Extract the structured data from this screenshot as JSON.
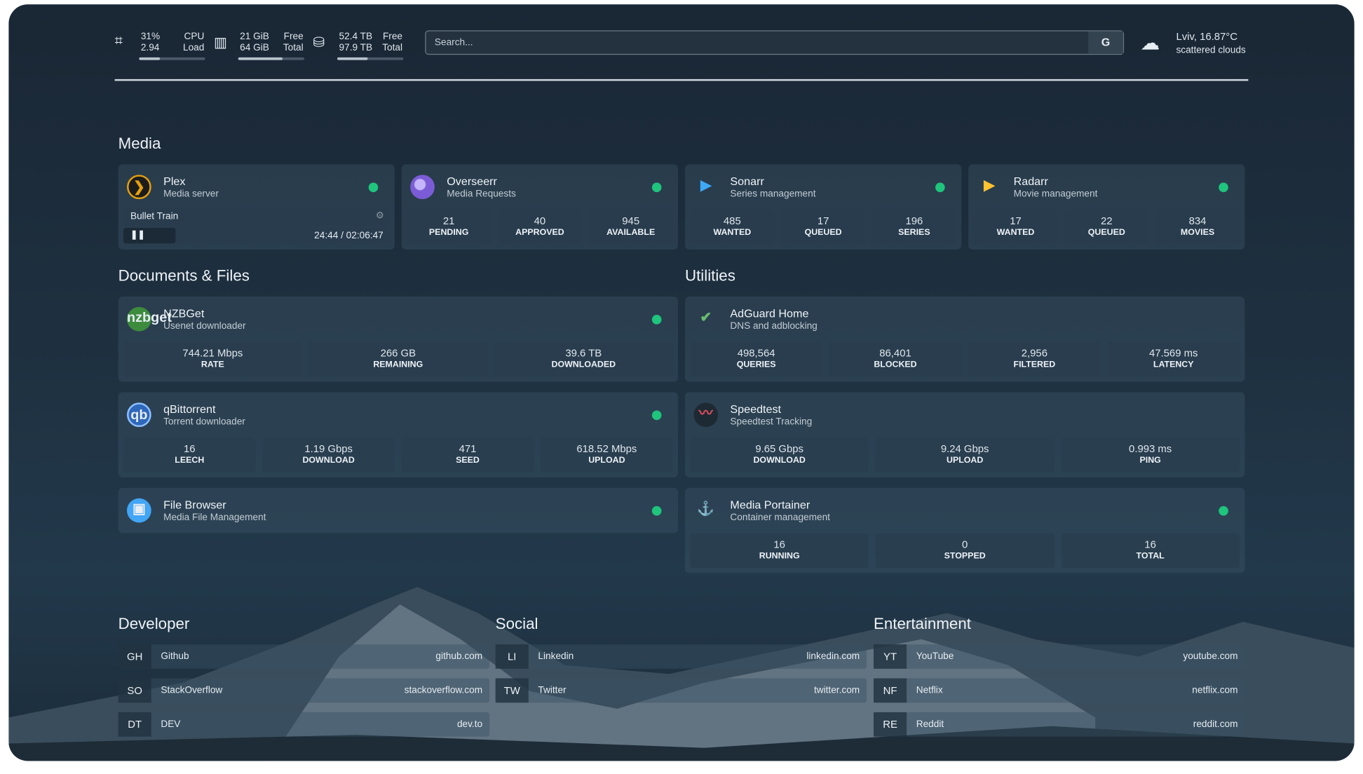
{
  "topbar": {
    "cpu": {
      "icon": "cpu-icon",
      "v1": "31%",
      "v2": "2.94",
      "l1": "CPU",
      "l2": "Load",
      "percent": 31
    },
    "ram": {
      "icon": "memory-icon",
      "v1": "21 GiB",
      "v2": "64 GiB",
      "l1": "Free",
      "l2": "Total",
      "percent": 67
    },
    "disk": {
      "icon": "drive-icon",
      "v1": "52.4 TB",
      "v2": "97.9 TB",
      "l1": "Free",
      "l2": "Total",
      "percent": 46
    },
    "search_placeholder": "Search...",
    "search_button": "G",
    "weather": {
      "icon": "cloud-icon",
      "location": "Lviv, 16.87°C",
      "desc": "scattered clouds"
    }
  },
  "sections": {
    "media": "Media",
    "docs": "Documents & Files",
    "utilities": "Utilities",
    "developer": "Developer",
    "social": "Social",
    "entertainment": "Entertainment"
  },
  "media": [
    {
      "title": "Plex",
      "sub": "Media server",
      "now_playing": "Bullet Train",
      "time": "24:44 / 02:06:47",
      "progress": 19.5,
      "status": "online"
    },
    {
      "title": "Overseerr",
      "sub": "Media Requests",
      "status": "online",
      "stats": [
        {
          "v": "21",
          "l": "PENDING"
        },
        {
          "v": "40",
          "l": "APPROVED"
        },
        {
          "v": "945",
          "l": "AVAILABLE"
        }
      ]
    },
    {
      "title": "Sonarr",
      "sub": "Series management",
      "status": "online",
      "stats": [
        {
          "v": "485",
          "l": "WANTED"
        },
        {
          "v": "17",
          "l": "QUEUED"
        },
        {
          "v": "196",
          "l": "SERIES"
        }
      ]
    },
    {
      "title": "Radarr",
      "sub": "Movie management",
      "status": "online",
      "stats": [
        {
          "v": "17",
          "l": "WANTED"
        },
        {
          "v": "22",
          "l": "QUEUED"
        },
        {
          "v": "834",
          "l": "MOVIES"
        }
      ]
    }
  ],
  "docs": [
    {
      "title": "NZBGet",
      "sub": "Usenet downloader",
      "icon_text": "nzbget",
      "stats": [
        {
          "v": "744.21 Mbps",
          "l": "RATE"
        },
        {
          "v": "266 GB",
          "l": "REMAINING"
        },
        {
          "v": "39.6 TB",
          "l": "DOWNLOADED"
        }
      ]
    },
    {
      "title": "qBittorrent",
      "sub": "Torrent downloader",
      "icon_text": "qb",
      "stats": [
        {
          "v": "16",
          "l": "LEECH"
        },
        {
          "v": "1.19 Gbps",
          "l": "DOWNLOAD"
        },
        {
          "v": "471",
          "l": "SEED"
        },
        {
          "v": "618.52 Mbps",
          "l": "UPLOAD"
        }
      ]
    },
    {
      "title": "File Browser",
      "sub": "Media File Management"
    }
  ],
  "utilities": [
    {
      "title": "AdGuard Home",
      "sub": "DNS and adblocking",
      "stats": [
        {
          "v": "498,564",
          "l": "QUERIES"
        },
        {
          "v": "86,401",
          "l": "BLOCKED"
        },
        {
          "v": "2,956",
          "l": "FILTERED"
        },
        {
          "v": "47.569 ms",
          "l": "LATENCY"
        }
      ]
    },
    {
      "title": "Speedtest",
      "sub": "Speedtest Tracking",
      "stats": [
        {
          "v": "9.65 Gbps",
          "l": "DOWNLOAD"
        },
        {
          "v": "9.24 Gbps",
          "l": "UPLOAD"
        },
        {
          "v": "0.993 ms",
          "l": "PING"
        }
      ]
    },
    {
      "title": "Media Portainer",
      "sub": "Container management",
      "stats": [
        {
          "v": "16",
          "l": "RUNNING"
        },
        {
          "v": "0",
          "l": "STOPPED"
        },
        {
          "v": "16",
          "l": "TOTAL"
        }
      ]
    }
  ],
  "bookmarks": {
    "developer": [
      {
        "ab": "GH",
        "name": "Github",
        "url": "github.com"
      },
      {
        "ab": "SO",
        "name": "StackOverflow",
        "url": "stackoverflow.com"
      },
      {
        "ab": "DT",
        "name": "DEV",
        "url": "dev.to"
      }
    ],
    "social": [
      {
        "ab": "LI",
        "name": "Linkedin",
        "url": "linkedin.com"
      },
      {
        "ab": "TW",
        "name": "Twitter",
        "url": "twitter.com"
      }
    ],
    "entertainment": [
      {
        "ab": "YT",
        "name": "YouTube",
        "url": "youtube.com"
      },
      {
        "ab": "NF",
        "name": "Netflix",
        "url": "netflix.com"
      },
      {
        "ab": "RE",
        "name": "Reddit",
        "url": "reddit.com"
      }
    ]
  },
  "colors": {
    "status_online": "#1fc47d",
    "plex": "#e5a00d",
    "overseerr": "#7b5cd6",
    "sonarr": "#3fa9f5",
    "radarr": "#ffc230",
    "adguard": "#68bc71"
  }
}
